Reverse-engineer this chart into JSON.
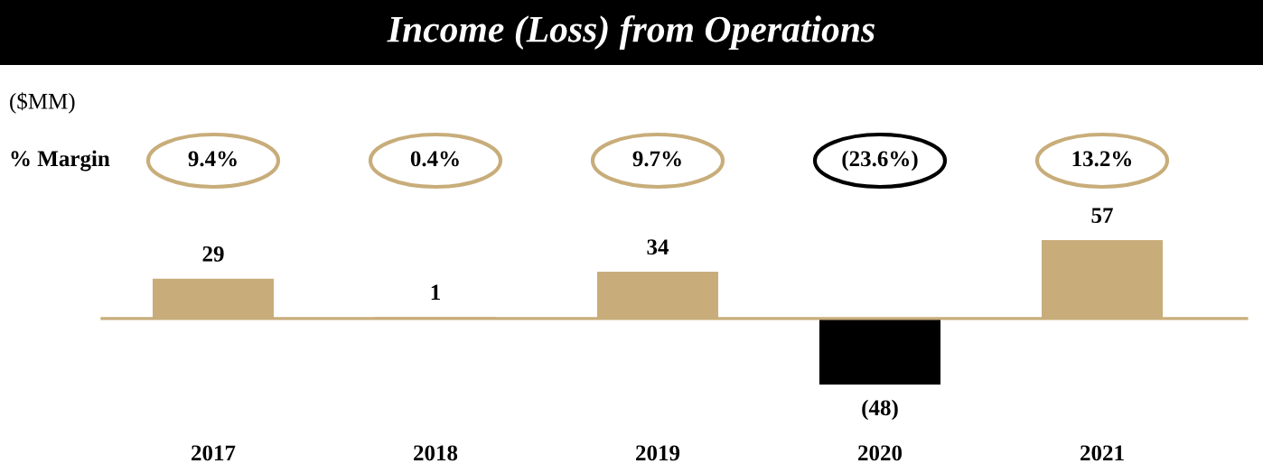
{
  "chart_data": {
    "type": "bar",
    "title": "Income (Loss) from Operations",
    "categories": [
      "2017",
      "2018",
      "2019",
      "2020",
      "2021"
    ],
    "values": [
      29,
      1,
      34,
      -48,
      57
    ],
    "colors": [
      "#c8ad7a",
      "#c8ad7a",
      "#c8ad7a",
      "#000000",
      "#c8ad7a"
    ],
    "value_labels": [
      "29",
      "1",
      "34",
      "(48)",
      "57"
    ],
    "annotations": [
      "($MM)",
      "% Margin",
      "9.4%",
      "0.4%",
      "9.7%",
      "(23.6%)",
      "13.2%"
    ],
    "ref_lines": [
      {
        "axis": "y",
        "value": 0,
        "color": "#c8ad7a"
      }
    ],
    "grid": false,
    "legend": false
  }
}
